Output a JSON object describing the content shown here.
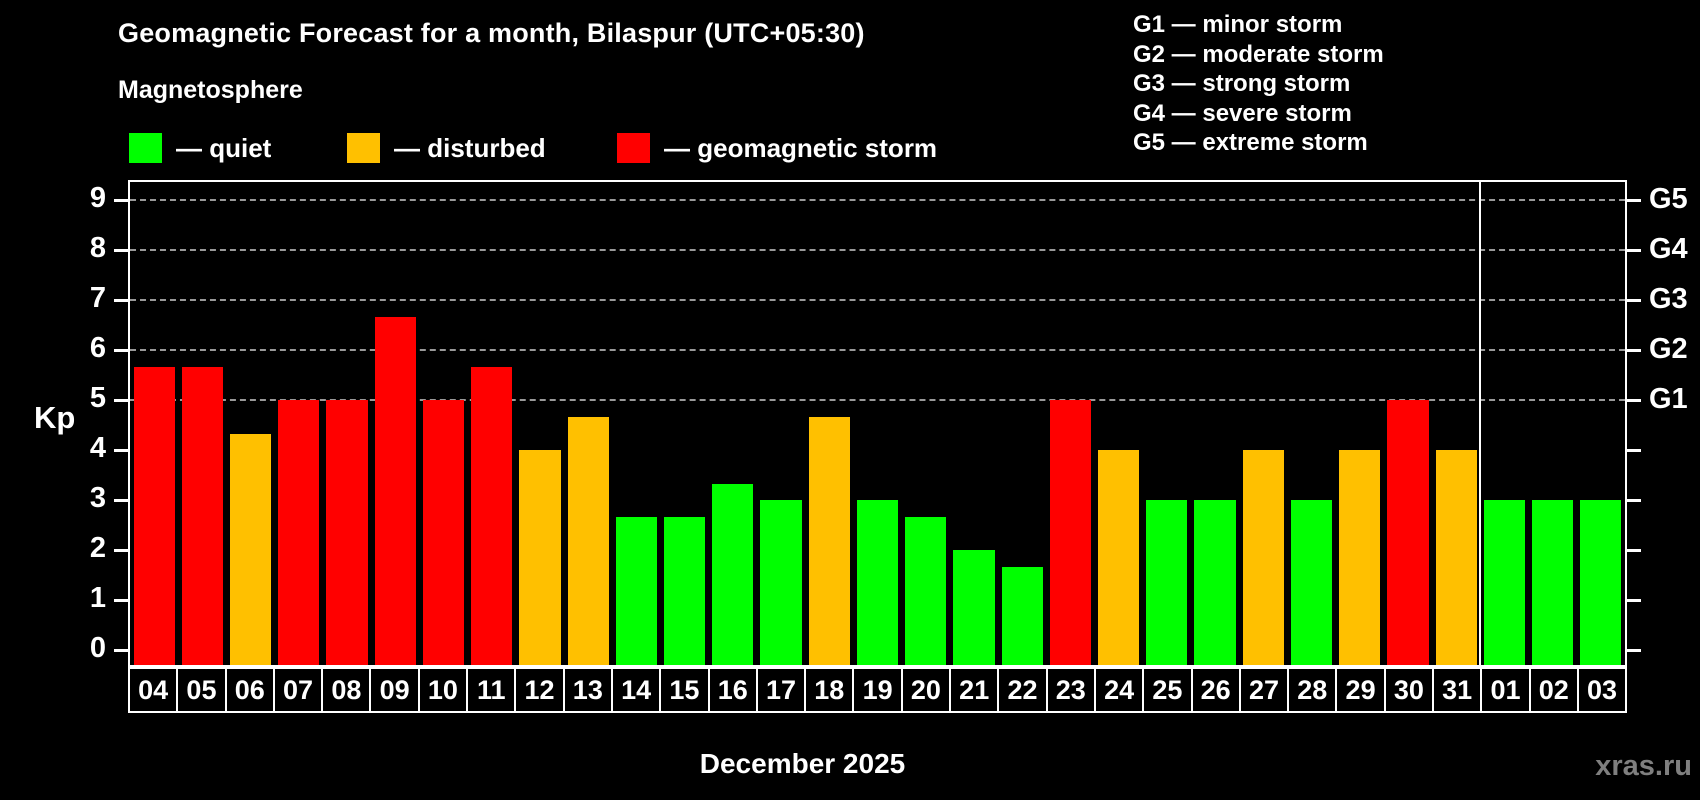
{
  "title": "Geomagnetic Forecast for a month, Bilaspur (UTC+05:30)",
  "subtitle": "Magnetosphere",
  "bar_legend": [
    {
      "id": "quiet",
      "label": "— quiet",
      "color": "#00ff00"
    },
    {
      "id": "disturbed",
      "label": "— disturbed",
      "color": "#ffc000"
    },
    {
      "id": "storm",
      "label": "— geomagnetic storm",
      "color": "#ff0000"
    }
  ],
  "g_legend": [
    "G1 — minor storm",
    "G2 — moderate storm",
    "G3 — strong storm",
    "G4 — severe storm",
    "G5 — extreme storm"
  ],
  "watermark": "xras.ru",
  "chart_data": {
    "type": "bar",
    "title": "Geomagnetic Forecast for a month, Bilaspur (UTC+05:30)",
    "xlabel": "December 2025",
    "ylabel": "Kp",
    "ylim": [
      0,
      9
    ],
    "yticks": [
      0,
      1,
      2,
      3,
      4,
      5,
      6,
      7,
      8,
      9
    ],
    "grid_kp": [
      5,
      6,
      7,
      8,
      9
    ],
    "right_axis": [
      {
        "kp": 5,
        "label": "G1"
      },
      {
        "kp": 6,
        "label": "G2"
      },
      {
        "kp": 7,
        "label": "G3"
      },
      {
        "kp": 8,
        "label": "G4"
      },
      {
        "kp": 9,
        "label": "G5"
      }
    ],
    "legend_position": "top-left",
    "grid": "dashed horizontal at Kp 5-9 only",
    "month_separator_after_day": "31",
    "status_colors": {
      "quiet": "#00ff00",
      "disturbed": "#ffc000",
      "storm": "#ff0000"
    },
    "days": [
      "04",
      "05",
      "06",
      "07",
      "08",
      "09",
      "10",
      "11",
      "12",
      "13",
      "14",
      "15",
      "16",
      "17",
      "18",
      "19",
      "20",
      "21",
      "22",
      "23",
      "24",
      "25",
      "26",
      "27",
      "28",
      "29",
      "30",
      "31",
      "01",
      "02",
      "03"
    ],
    "values": [
      5.67,
      5.67,
      4.33,
      5,
      5,
      6.67,
      5,
      5.67,
      4,
      4.67,
      2.67,
      2.67,
      3.33,
      3,
      4.67,
      3,
      2.67,
      2,
      1.67,
      5,
      4,
      3,
      3,
      4,
      3,
      4,
      5,
      4,
      3,
      3,
      3
    ],
    "statuses": [
      "storm",
      "storm",
      "disturbed",
      "storm",
      "storm",
      "storm",
      "storm",
      "storm",
      "disturbed",
      "disturbed",
      "quiet",
      "quiet",
      "quiet",
      "quiet",
      "disturbed",
      "quiet",
      "quiet",
      "quiet",
      "quiet",
      "storm",
      "disturbed",
      "quiet",
      "quiet",
      "disturbed",
      "quiet",
      "disturbed",
      "storm",
      "disturbed",
      "quiet",
      "quiet",
      "quiet"
    ]
  }
}
